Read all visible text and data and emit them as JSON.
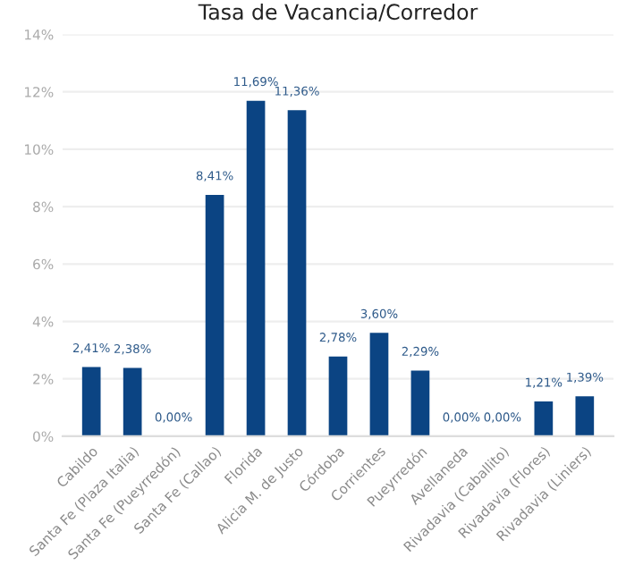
{
  "chart_data": {
    "type": "bar",
    "title": "Tasa de Vacancia/Corredor",
    "categories": [
      "Cabildo",
      "Santa Fe (Plaza Italia)",
      "Santa Fe (Pueyrredón)",
      "Santa Fe (Callao)",
      "Florida",
      "Alicia M. de Justo",
      "Córdoba",
      "Corrientes",
      "Pueyrredón",
      "Avellaneda",
      "Rivadavia (Caballito)",
      "Rivadavia (Flores)",
      "Rivadavia (Liniers)"
    ],
    "values": [
      2.41,
      2.38,
      0,
      8.41,
      11.69,
      11.36,
      2.78,
      3.6,
      2.29,
      0,
      0,
      1.21,
      1.39
    ],
    "value_labels": [
      "2,41%",
      "2,38%",
      "0,00%",
      "8,41%",
      "11,69%",
      "11,36%",
      "2,78%",
      "3,60%",
      "2,29%",
      "0,00%",
      "0,00%",
      "1,21%",
      "1,39%"
    ],
    "color": "#0b4483",
    "ylim": [
      0,
      14
    ],
    "yticks": [
      {
        "value": 0,
        "label": "0%"
      },
      {
        "value": 2,
        "label": "2%"
      },
      {
        "value": 4,
        "label": "4%"
      },
      {
        "value": 6,
        "label": "6%"
      },
      {
        "value": 8,
        "label": "8%"
      },
      {
        "value": 10,
        "label": "10%"
      },
      {
        "value": 12,
        "label": "12%"
      },
      {
        "value": 14,
        "label": "14%"
      }
    ],
    "grid": "y",
    "legend": false
  }
}
